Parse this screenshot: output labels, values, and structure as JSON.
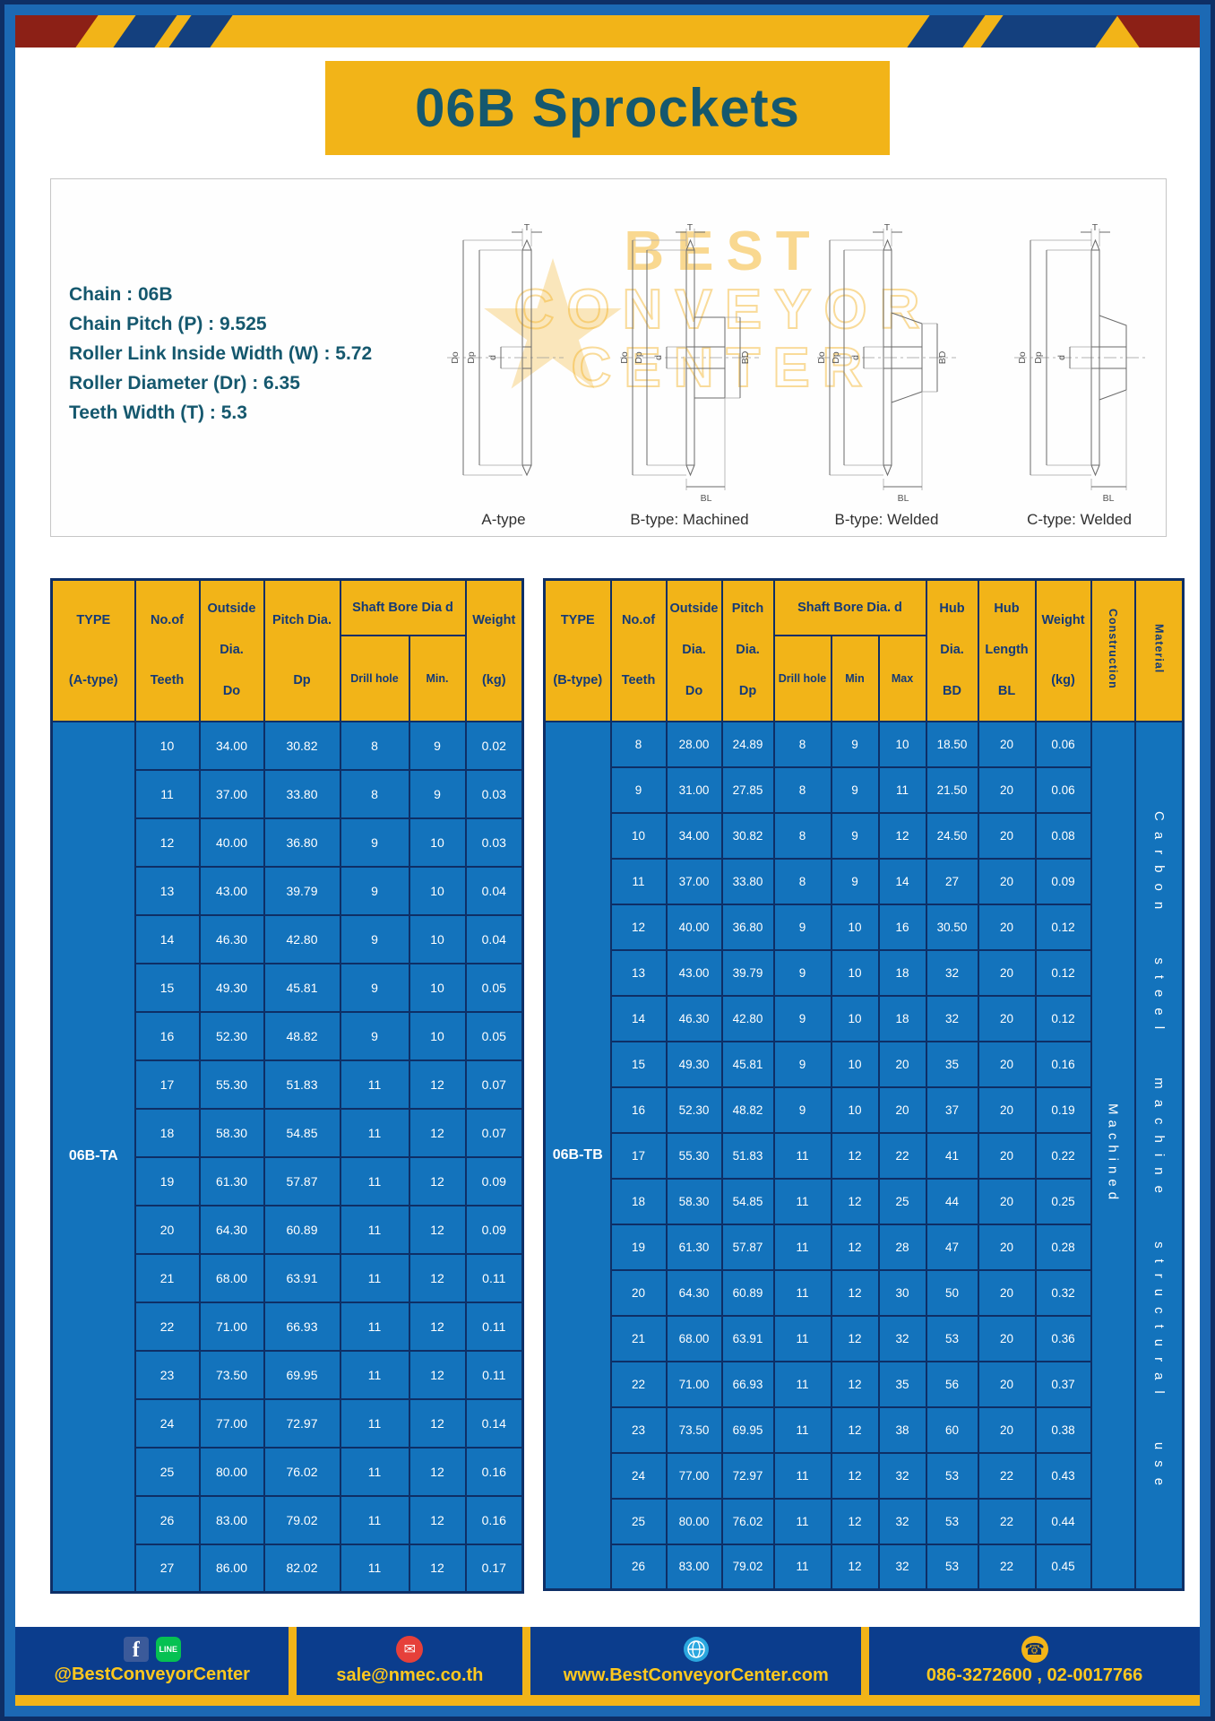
{
  "page": {
    "title": "06B Sprockets"
  },
  "specs": {
    "lines": [
      "Chain : 06B",
      "Chain Pitch (P) : 9.525",
      "Roller Link Inside Width (W) : 5.72",
      "Roller Diameter (Dr) : 6.35",
      "Teeth Width (T) : 5.3"
    ]
  },
  "watermark": {
    "lines": [
      "BEST",
      "CONVEYOR",
      "CENTER"
    ]
  },
  "drawings": [
    {
      "label": "A-type",
      "dims": {
        "T": "T",
        "Do": "Do",
        "Dp": "Dp",
        "d": "d"
      }
    },
    {
      "label": "B-type: Machined",
      "dims": {
        "T": "T",
        "Do": "Do",
        "Dp": "Dp",
        "d": "d",
        "BD": "BD",
        "BL": "BL"
      }
    },
    {
      "label": "B-type: Welded",
      "dims": {
        "T": "T",
        "Do": "Do",
        "Dp": "Dp",
        "d": "d",
        "BD": "BD",
        "BL": "BL"
      }
    },
    {
      "label": "C-type: Welded",
      "dims": {
        "T": "T",
        "Do": "Do",
        "Dp": "Dp",
        "d": "d",
        "BL": "BL"
      }
    }
  ],
  "table_a": {
    "headers": {
      "type": [
        "TYPE",
        "(A-type)"
      ],
      "teeth": [
        "No.of",
        "Teeth"
      ],
      "outside": [
        "Outside",
        "Dia.",
        "Do"
      ],
      "pitch": [
        "Pitch Dia.",
        "Dp"
      ],
      "bore": "Shaft Bore Dia d",
      "bore_sub": [
        "Drill hole",
        "Min."
      ],
      "weight": [
        "Weight",
        "(kg)"
      ]
    },
    "type_value": "06B-TA",
    "rows": [
      [
        "10",
        "34.00",
        "30.82",
        "8",
        "9",
        "0.02"
      ],
      [
        "11",
        "37.00",
        "33.80",
        "8",
        "9",
        "0.03"
      ],
      [
        "12",
        "40.00",
        "36.80",
        "9",
        "10",
        "0.03"
      ],
      [
        "13",
        "43.00",
        "39.79",
        "9",
        "10",
        "0.04"
      ],
      [
        "14",
        "46.30",
        "42.80",
        "9",
        "10",
        "0.04"
      ],
      [
        "15",
        "49.30",
        "45.81",
        "9",
        "10",
        "0.05"
      ],
      [
        "16",
        "52.30",
        "48.82",
        "9",
        "10",
        "0.05"
      ],
      [
        "17",
        "55.30",
        "51.83",
        "11",
        "12",
        "0.07"
      ],
      [
        "18",
        "58.30",
        "54.85",
        "11",
        "12",
        "0.07"
      ],
      [
        "19",
        "61.30",
        "57.87",
        "11",
        "12",
        "0.09"
      ],
      [
        "20",
        "64.30",
        "60.89",
        "11",
        "12",
        "0.09"
      ],
      [
        "21",
        "68.00",
        "63.91",
        "11",
        "12",
        "0.11"
      ],
      [
        "22",
        "71.00",
        "66.93",
        "11",
        "12",
        "0.11"
      ],
      [
        "23",
        "73.50",
        "69.95",
        "11",
        "12",
        "0.11"
      ],
      [
        "24",
        "77.00",
        "72.97",
        "11",
        "12",
        "0.14"
      ],
      [
        "25",
        "80.00",
        "76.02",
        "11",
        "12",
        "0.16"
      ],
      [
        "26",
        "83.00",
        "79.02",
        "11",
        "12",
        "0.16"
      ],
      [
        "27",
        "86.00",
        "82.02",
        "11",
        "12",
        "0.17"
      ]
    ]
  },
  "table_b": {
    "headers": {
      "type": [
        "TYPE",
        "(B-type)"
      ],
      "teeth": [
        "No.of",
        "Teeth"
      ],
      "outside": [
        "Outside",
        "Dia.",
        "Do"
      ],
      "pitch": [
        "Pitch",
        "Dia.",
        "Dp"
      ],
      "bore": "Shaft Bore Dia. d",
      "bore_sub": [
        "Drill hole",
        "Min",
        "Max"
      ],
      "hub_dia": [
        "Hub",
        "Dia.",
        "BD"
      ],
      "hub_len": [
        "Hub",
        "Length",
        "BL"
      ],
      "weight": [
        "Weight",
        "(kg)"
      ],
      "construction": "Construction",
      "material": "Material"
    },
    "type_value": "06B-TB",
    "construction_value": "Machined",
    "material_value": "Carbon steel machine structural use",
    "rows": [
      [
        "8",
        "28.00",
        "24.89",
        "8",
        "9",
        "10",
        "18.50",
        "20",
        "0.06"
      ],
      [
        "9",
        "31.00",
        "27.85",
        "8",
        "9",
        "11",
        "21.50",
        "20",
        "0.06"
      ],
      [
        "10",
        "34.00",
        "30.82",
        "8",
        "9",
        "12",
        "24.50",
        "20",
        "0.08"
      ],
      [
        "11",
        "37.00",
        "33.80",
        "8",
        "9",
        "14",
        "27",
        "20",
        "0.09"
      ],
      [
        "12",
        "40.00",
        "36.80",
        "9",
        "10",
        "16",
        "30.50",
        "20",
        "0.12"
      ],
      [
        "13",
        "43.00",
        "39.79",
        "9",
        "10",
        "18",
        "32",
        "20",
        "0.12"
      ],
      [
        "14",
        "46.30",
        "42.80",
        "9",
        "10",
        "18",
        "32",
        "20",
        "0.12"
      ],
      [
        "15",
        "49.30",
        "45.81",
        "9",
        "10",
        "20",
        "35",
        "20",
        "0.16"
      ],
      [
        "16",
        "52.30",
        "48.82",
        "9",
        "10",
        "20",
        "37",
        "20",
        "0.19"
      ],
      [
        "17",
        "55.30",
        "51.83",
        "11",
        "12",
        "22",
        "41",
        "20",
        "0.22"
      ],
      [
        "18",
        "58.30",
        "54.85",
        "11",
        "12",
        "25",
        "44",
        "20",
        "0.25"
      ],
      [
        "19",
        "61.30",
        "57.87",
        "11",
        "12",
        "28",
        "47",
        "20",
        "0.28"
      ],
      [
        "20",
        "64.30",
        "60.89",
        "11",
        "12",
        "30",
        "50",
        "20",
        "0.32"
      ],
      [
        "21",
        "68.00",
        "63.91",
        "11",
        "12",
        "32",
        "53",
        "20",
        "0.36"
      ],
      [
        "22",
        "71.00",
        "66.93",
        "11",
        "12",
        "35",
        "56",
        "20",
        "0.37"
      ],
      [
        "23",
        "73.50",
        "69.95",
        "11",
        "12",
        "38",
        "60",
        "20",
        "0.38"
      ],
      [
        "24",
        "77.00",
        "72.97",
        "11",
        "12",
        "32",
        "53",
        "22",
        "0.43"
      ],
      [
        "25",
        "80.00",
        "76.02",
        "11",
        "12",
        "32",
        "53",
        "22",
        "0.44"
      ],
      [
        "26",
        "83.00",
        "79.02",
        "11",
        "12",
        "32",
        "53",
        "22",
        "0.45"
      ]
    ]
  },
  "footer": {
    "social_handle": "@BestConveyorCenter",
    "email": "sale@nmec.co.th",
    "website": "www.BestConveyorCenter.com",
    "phones": "086-3272600 , 02-0017766",
    "facebook_glyph": "f",
    "line_glyph": "LINE",
    "mail_glyph": "✉",
    "phone_glyph": "☎"
  },
  "colors": {
    "accent": "#f2b418",
    "blue": "#1373bc",
    "navy": "#0e2f66",
    "teal": "#15586e",
    "footer-blue": "#0b3d8d"
  }
}
